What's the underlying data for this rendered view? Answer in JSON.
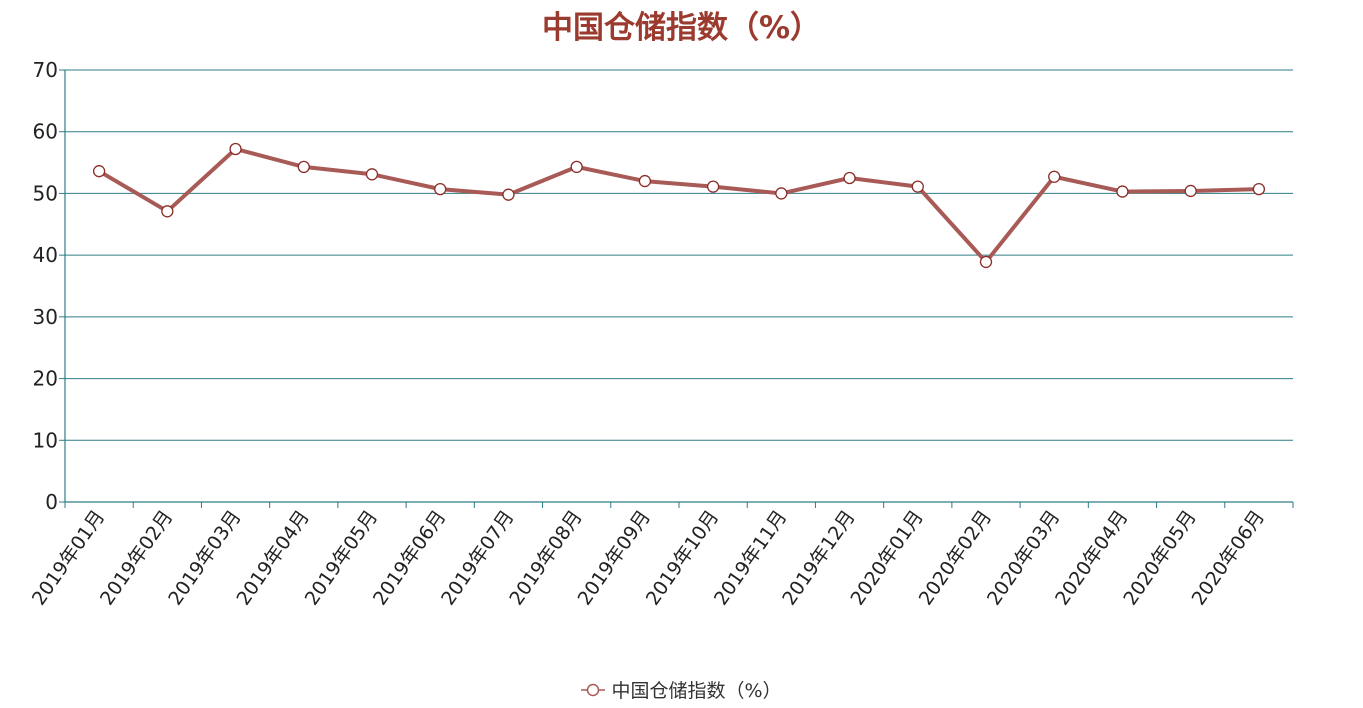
{
  "chart_data": {
    "type": "line",
    "title": "中国仓储指数（%）",
    "xlabel": "",
    "ylabel": "",
    "ylim": [
      0,
      70
    ],
    "yticks": [
      0,
      10,
      20,
      30,
      40,
      50,
      60,
      70
    ],
    "grid": true,
    "legend_position": "bottom-center",
    "categories": [
      "2019年01月",
      "2019年02月",
      "2019年03月",
      "2019年04月",
      "2019年05月",
      "2019年06月",
      "2019年07月",
      "2019年08月",
      "2019年09月",
      "2019年10月",
      "2019年11月",
      "2019年12月",
      "2020年01月",
      "2020年02月",
      "2020年03月",
      "2020年04月",
      "2020年05月",
      "2020年06月"
    ],
    "series": [
      {
        "name": "中国仓储指数（%）",
        "values": [
          53.6,
          47.1,
          57.2,
          54.3,
          53.1,
          50.7,
          49.8,
          54.3,
          52.0,
          51.1,
          50.0,
          52.5,
          51.1,
          38.9,
          52.7,
          50.3,
          50.4,
          50.7
        ],
        "color": "#a85a56"
      }
    ]
  },
  "colors": {
    "title": "#9b3a2e",
    "grid": "#2e7d86",
    "axis": "#2e7d86",
    "line": "#a85a56",
    "marker_fill": "#ffffff",
    "marker_stroke": "#8b2d28"
  }
}
